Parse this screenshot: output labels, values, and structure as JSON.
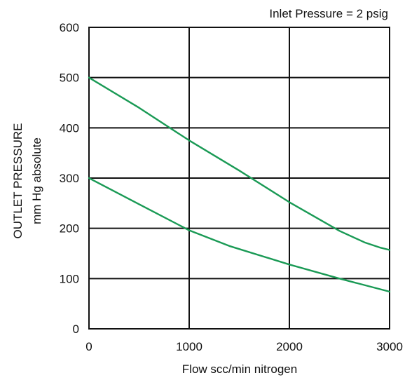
{
  "chart_data": {
    "type": "line",
    "annotation": "Inlet Pressure = 2 psig",
    "xlabel": "Flow scc/min nitrogen",
    "ylabel_line1": "OUTLET PRESSURE",
    "ylabel_line2": "mm Hg absolute",
    "xlim": [
      0,
      3000
    ],
    "ylim": [
      0,
      600
    ],
    "x_ticks": [
      "0",
      "1000",
      "2000",
      "3000"
    ],
    "y_ticks": [
      "600",
      "500",
      "400",
      "300",
      "200",
      "100",
      "0"
    ],
    "grid": true,
    "series_color": "#1a9a55",
    "series": [
      {
        "x": [
          0,
          500,
          1000,
          1500,
          2000,
          2500,
          2750,
          2900,
          3000
        ],
        "y": [
          500,
          440,
          375,
          315,
          252,
          195,
          172,
          162,
          157
        ]
      },
      {
        "x": [
          0,
          500,
          1000,
          1400,
          2000,
          2500,
          3000
        ],
        "y": [
          300,
          248,
          196,
          165,
          128,
          100,
          74
        ]
      }
    ]
  }
}
